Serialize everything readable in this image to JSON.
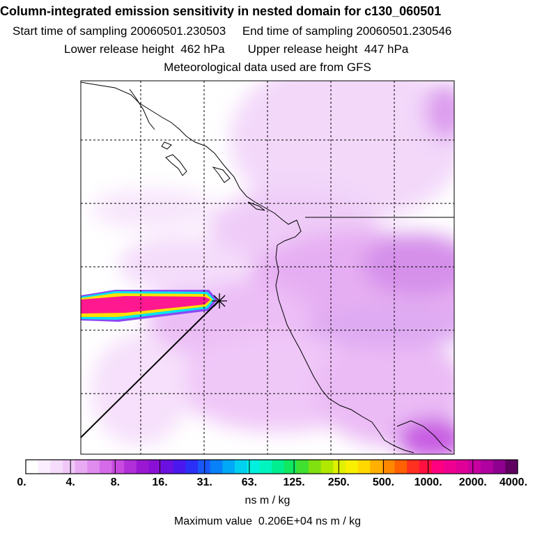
{
  "header": {
    "title": "Column-integrated emission sensitivity in nested domain for c130_060501",
    "sampling_line": "Start time of sampling 20060501.230503     End time of sampling 20060501.230546",
    "release_line": "Lower release height  462 hPa       Upper release height  447 hPa",
    "met_line": "Meteorological data used are from GFS"
  },
  "colorbar": {
    "tick_labels": [
      "0.",
      "4.",
      "8.",
      "16.",
      "31.",
      "63.",
      "125.",
      "250.",
      "500.",
      "1000.",
      "2000.",
      "4000."
    ],
    "unit_label": "ns m / kg",
    "colors": [
      "#ffffff",
      "#fbeefe",
      "#f5dcfb",
      "#f0c8f8",
      "#e9aaf4",
      "#e08cef",
      "#d56be8",
      "#c74be0",
      "#b02fd8",
      "#9a18d2",
      "#8a10d6",
      "#6a10e0",
      "#4a18ee",
      "#2a30f6",
      "#1858f8",
      "#0880f8",
      "#00a8f8",
      "#00d0f0",
      "#00f0e0",
      "#00f4c0",
      "#00ee90",
      "#10e860",
      "#40e030",
      "#80e010",
      "#b0e800",
      "#e0f000",
      "#f8f000",
      "#ffd800",
      "#ffb000",
      "#ff8800",
      "#ff6000",
      "#ff3020",
      "#ff1040",
      "#ff0080",
      "#f00090",
      "#e00098",
      "#c800a0",
      "#b000a0",
      "#900090",
      "#600060"
    ]
  },
  "footer": {
    "max_value_line": "Maximum value  0.206E+04 ns m / kg"
  },
  "map": {
    "release_marker": "release-point-star",
    "plume_colors": [
      "#ff10a0",
      "#ffe000",
      "#00f0e0",
      "#9040f0"
    ]
  }
}
